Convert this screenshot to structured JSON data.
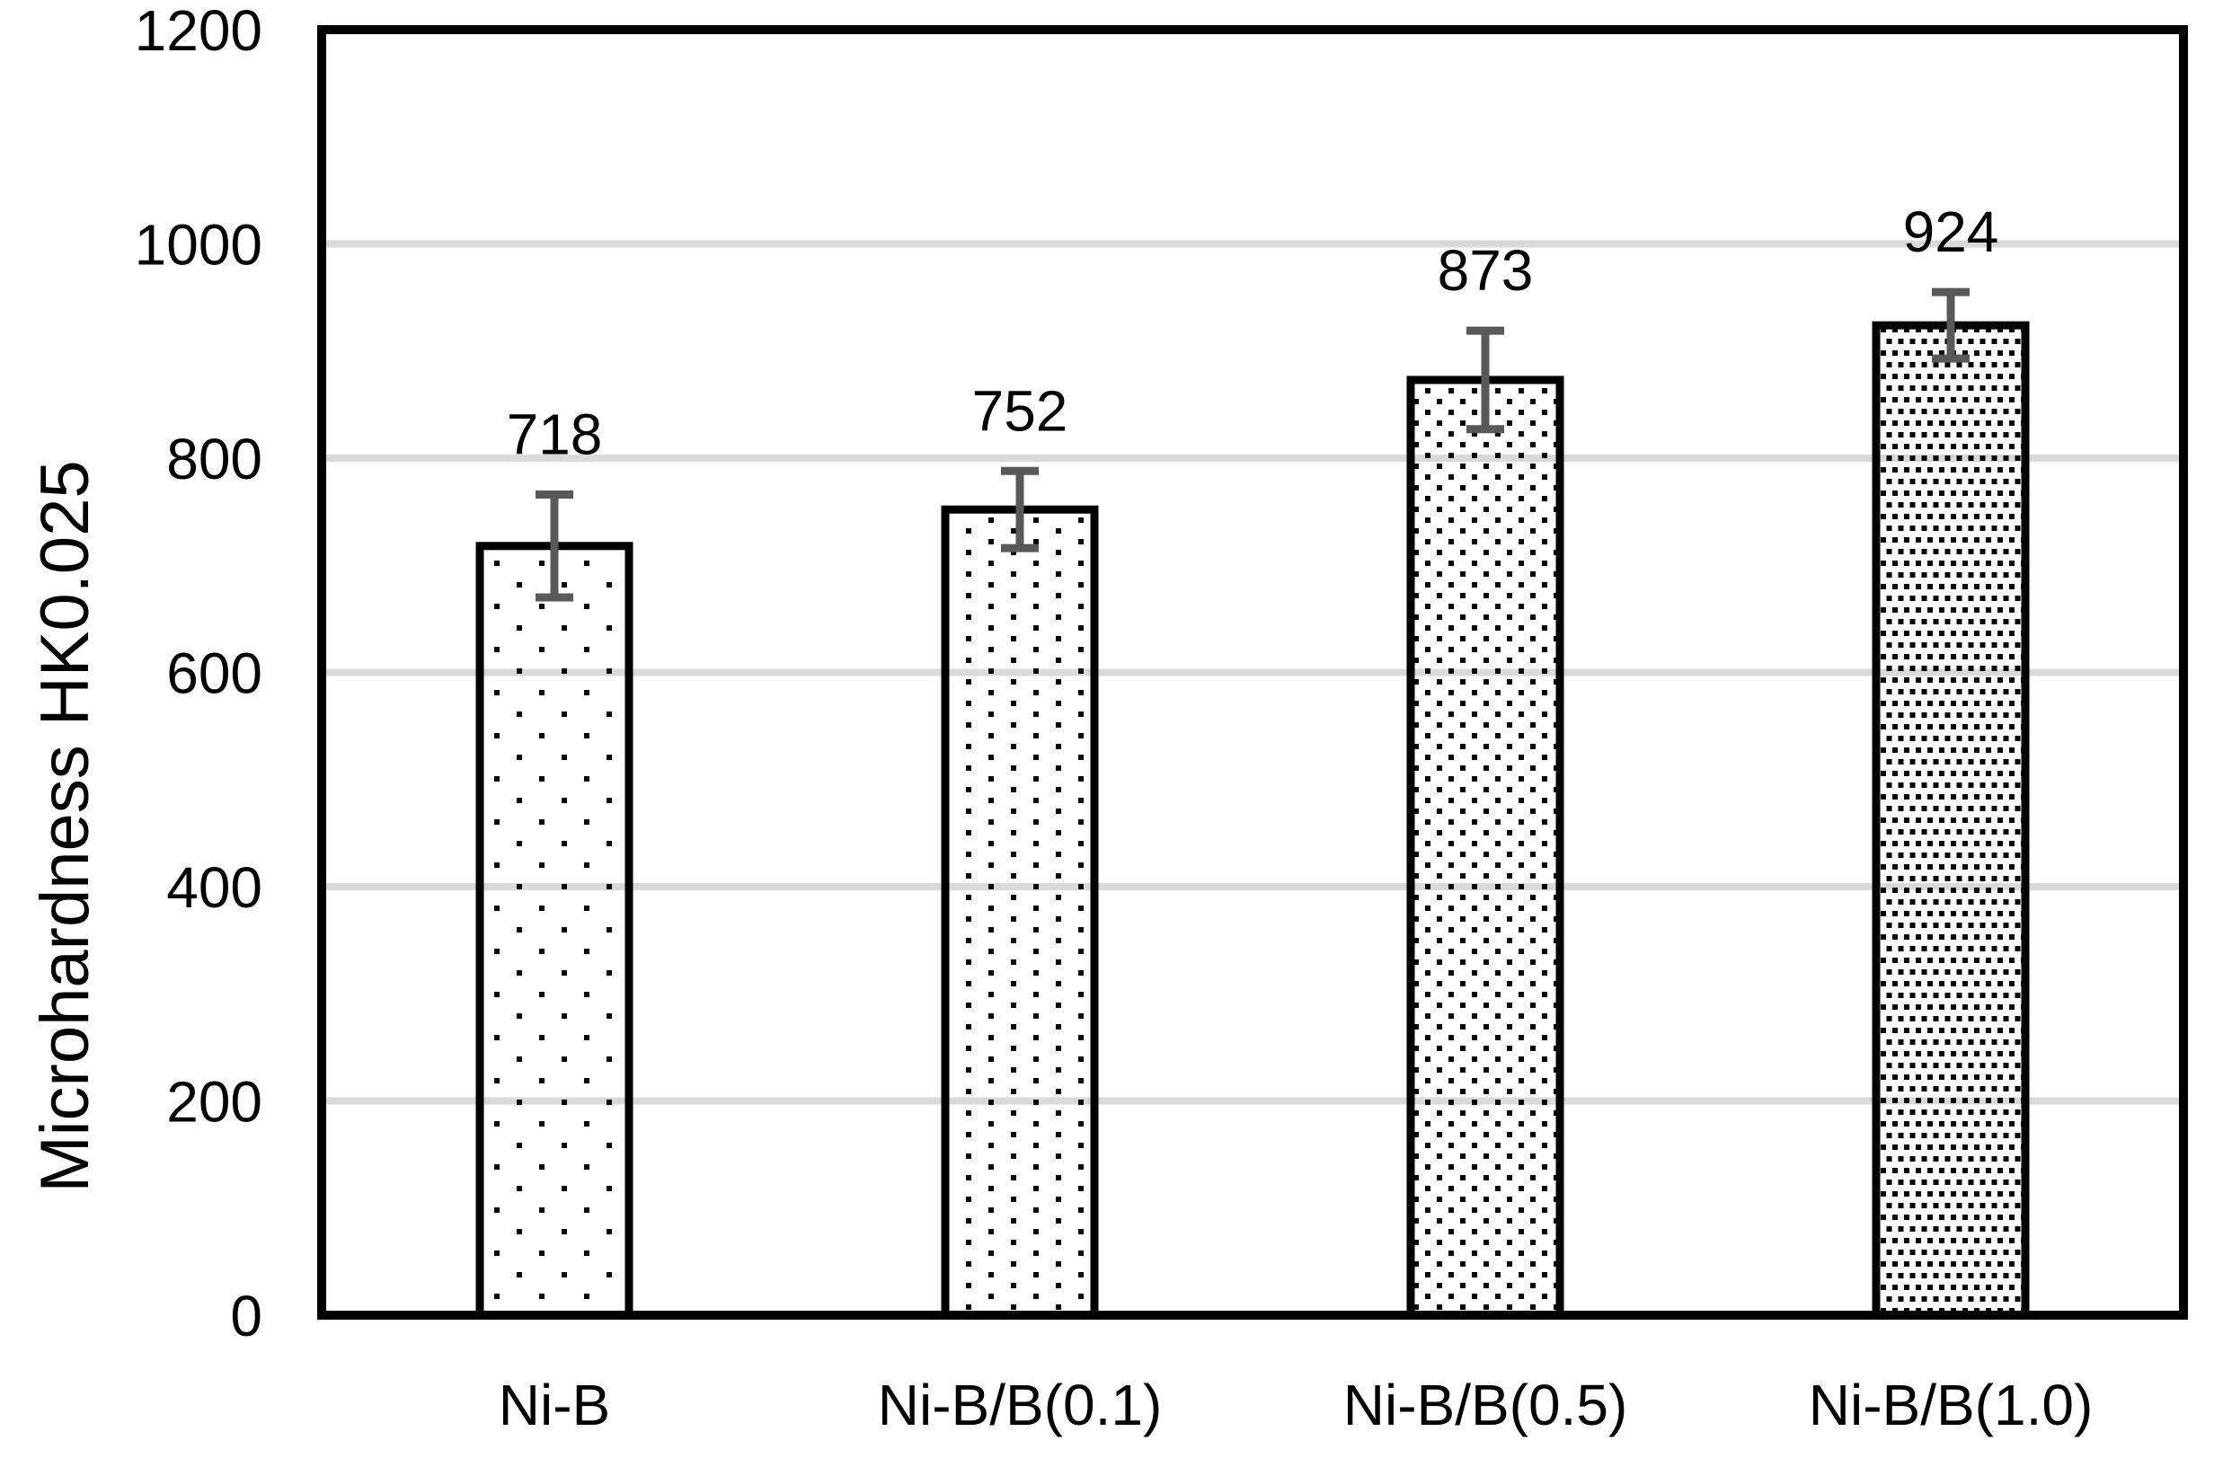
{
  "chart_data": {
    "type": "bar",
    "title": "",
    "xlabel": "",
    "ylabel": "Microhardness HK0.025",
    "categories": [
      "Ni-B",
      "Ni-B/B(0.1)",
      "Ni-B/B(0.5)",
      "Ni-B/B(1.0)"
    ],
    "values": [
      718,
      752,
      873,
      924
    ],
    "data_labels": [
      "718",
      "752",
      "873",
      "924"
    ],
    "errors": [
      48,
      36,
      46,
      31
    ],
    "ylim": [
      0,
      1200
    ],
    "yticks": [
      0,
      200,
      400,
      600,
      800,
      1000,
      1200
    ],
    "ytick_labels": [
      "0",
      "200",
      "400",
      "600",
      "800",
      "1000",
      "1200"
    ],
    "grid": true,
    "legend_position": "none",
    "bar_patterns": [
      "dots-5pct",
      "dots-10pct",
      "dots-20pct",
      "dots-40pct"
    ],
    "colors": {
      "background": "#ffffff",
      "bar_fill_dot": "#000000",
      "bar_outline": "#000000",
      "axis_border": "#000000",
      "gridline": "#d9d9d9",
      "error_bar": "#595959",
      "text": "#000000"
    }
  }
}
